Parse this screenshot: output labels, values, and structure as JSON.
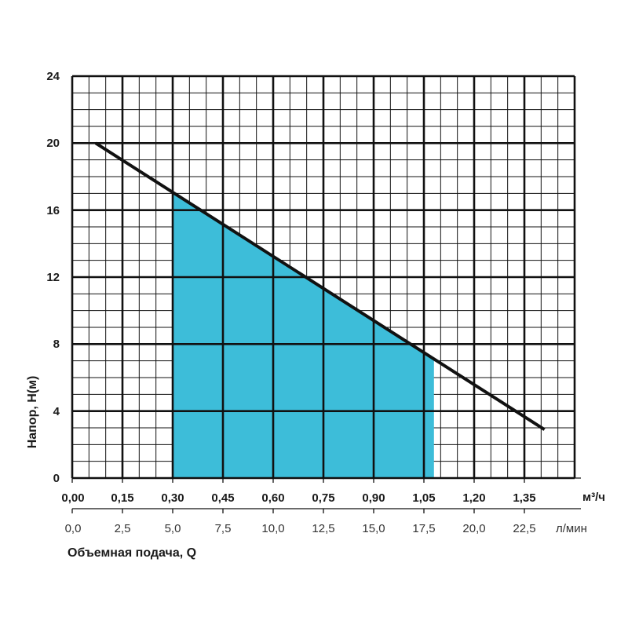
{
  "chart_data": {
    "type": "line",
    "ylabel": "Напор, H(м)",
    "xlabel": "Объемная подача, Q",
    "y_ticks": [
      "0",
      "4",
      "8",
      "12",
      "16",
      "20",
      "24"
    ],
    "ylim": [
      0,
      24
    ],
    "x_ticks_m3h": [
      "0,00",
      "0,15",
      "0,30",
      "0,45",
      "0,60",
      "0,75",
      "0,90",
      "1,05",
      "1,20",
      "1,35"
    ],
    "x_unit_m3h": "м³/ч",
    "x_ticks_lmin": [
      "0,0",
      "2,5",
      "5,0",
      "7,5",
      "10,0",
      "12,5",
      "15,0",
      "17,5",
      "20,0",
      "22,5"
    ],
    "x_unit_lmin": "л/мин",
    "xlim_m3h": [
      0,
      1.5
    ],
    "grid": true,
    "series": [
      {
        "x": [
          0.07,
          1.41
        ],
        "y": [
          20,
          2.9
        ],
        "color": "#111111"
      }
    ],
    "working_range": {
      "x_start": 0.3,
      "x_end": 1.08,
      "color": "#3dbdd9"
    }
  }
}
